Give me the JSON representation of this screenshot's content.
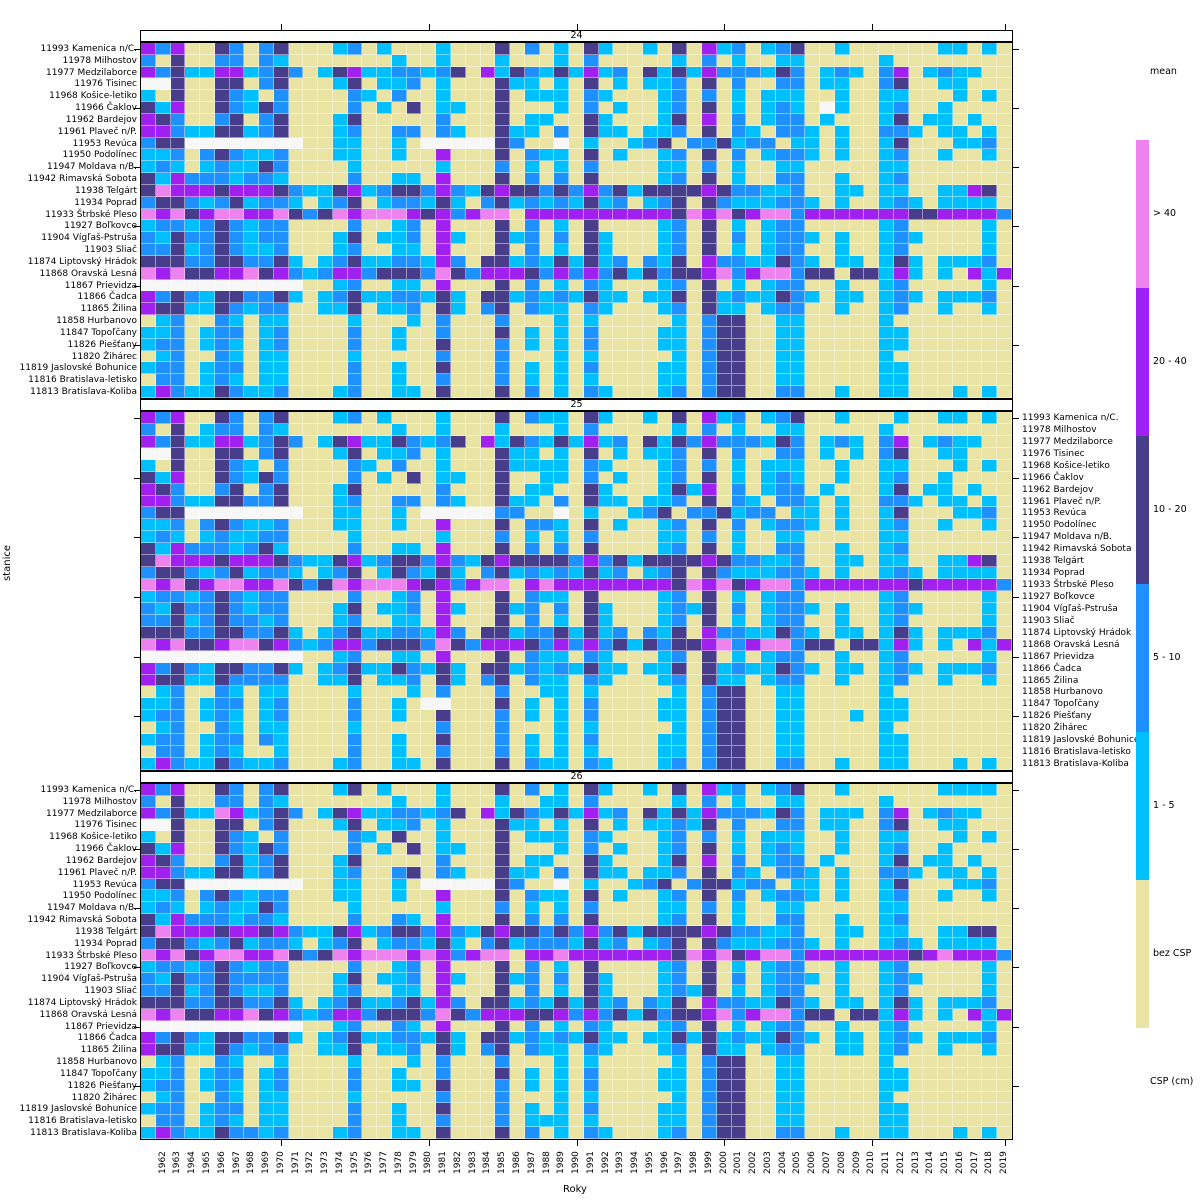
{
  "figure": {
    "background": "#ffffff"
  },
  "axes": {
    "x_label": "Roky",
    "y_label": "stanice"
  },
  "legend": {
    "title_top": "mean",
    "title_bottom": "CSP (cm)",
    "entries": [
      {
        "label": "> 40",
        "color": "#EE82EE"
      },
      {
        "label": "20 - 40",
        "color": "#A020F0"
      },
      {
        "label": "10 - 20",
        "color": "#483D8B"
      },
      {
        "label": "5 - 10",
        "color": "#1E90FF"
      },
      {
        "label": "1 - 5",
        "color": "#00BFFF"
      },
      {
        "label": "bez CSP",
        "color": "#E9E4A4"
      }
    ]
  },
  "stations": [
    "11993 Kamenica n/C.",
    "11978 Milhostov",
    "11977 Medzilaborce",
    "11976 Tisinec",
    "11968 Košice-letiko",
    "11966 Čaklov",
    "11962 Bardejov",
    "11961 Plaveč n/P.",
    "11953 Revúca",
    "11950 Podolínec",
    "11947 Moldava n/B.",
    "11942 Rimavská Sobota",
    "11938 Telgárt",
    "11934 Poprad",
    "11933 Štrbské Pleso",
    "11927 Boľkovce",
    "11904 Vígľaš-Pstruša",
    "11903 Sliač",
    "11874 Liptovský Hrádok",
    "11868 Oravská Lesná",
    "11867 Prievidza",
    "11866 Čadca",
    "11865 Žilina",
    "11858 Hurbanovo",
    "11847 Topoľčany",
    "11826 Piešťany",
    "11820 Žihárec",
    "11819 Jaslovské Bohunice",
    "11816 Bratislava-letisko",
    "11813 Bratislava-Koliba"
  ],
  "chart_data": {
    "type": "heatmap",
    "first_column_year": 1961,
    "n_columns": 59,
    "x_tick_labels": [
      1962,
      1963,
      1964,
      1965,
      1966,
      1967,
      1968,
      1969,
      1970,
      1971,
      1972,
      1973,
      1974,
      1975,
      1976,
      1977,
      1978,
      1979,
      1980,
      1981,
      1982,
      1983,
      1984,
      1985,
      1986,
      1987,
      1988,
      1989,
      1990,
      1991,
      1992,
      1993,
      1994,
      1995,
      1996,
      1997,
      1998,
      1999,
      2000,
      2001,
      2002,
      2003,
      2004,
      2005,
      2006,
      2007,
      2008,
      2009,
      2010,
      2011,
      2012,
      2013,
      2014,
      2015,
      2016,
      2017,
      2018,
      2019
    ],
    "decade_ticks": [
      1970,
      1980,
      1990,
      2000,
      2010,
      2019
    ],
    "value_categories": {
      "0": "bez CSP",
      "1": "1 - 5",
      "2": "5 - 10",
      "3": "10 - 20",
      "4": "20 - 40",
      "5": "> 40",
      "6": "NA"
    },
    "value_colors": {
      "0": "#E9E4A4",
      "1": "#00BFFF",
      "2": "#1E90FF",
      "3": "#483D8B",
      "4": "#A020F0",
      "5": "#EE82EE",
      "6": "#F7F7F7"
    },
    "panels": [
      {
        "label": "24",
        "rows": [
          "42400320230001201000100030201031001030412012300100000011010",
          "20300220210000000100100010001020000010201001100000100000000",
          "42311441232013411221230413213141203131422213201210240121100",
          "66300330230001301120100031101030101120302002201100230011000",
          "10300321020000210200100030111021000120201011100100110001010",
          "31400321320000201030110030001020100120301012106100120010000",
          "43200230230001300000200030110031000130402012201000130110100",
          "44211331230001200220210031102031101120302102210100221011010",
          "23366666666001100106666632006010012302231220110100130001120",
          "11202321120001100100400030211030100120302012210100120010010",
          "12101211320000100000100020101020000110201001100000110000000",
          "31422212210000200110400030202030000120301002200100120000000",
          "35444344432113412332421343323242313333432211200110110011430",
          "23321231221012301221310231212131201230321112210100121011110",
          "54534554453235455543424550444444444435453455244444443344442",
          "12212321220000200120400030201030000120301012200000120000010",
          "21322321220001301120410031202031000120302012210100121000010",
          "22312321120001200110400030201031000120301012200100120000010",
          "33322332231012311221420331213131202130422113210110131011120",
          "54533445342124423332532444324242313233452455233033141010414",
          "66666666666001200110400030201021000120301012200100120000010",
          "42321332231012311221310331212131101130312113210110121011120",
          "43311321220011301120310230211021000120311012200100120010010",
          "01200210110000100010200020001010000010233001100000100000000",
          "11201220120000200100200030101020000110233001100000110000000",
          "12201210120000200100300020101020000110233001100000110000000",
          "01200210110000100000200020001010000010233001100000100000000",
          "12201220110000200100300020101020000110233001100000110000000",
          "02201210110000200100200020101010000110233001100000110000000",
          "14211321120001200110300030201021000120233002200100110001010"
        ]
      },
      {
        "label": "25",
        "rows": [
          "42400320230001201000100030211031001030412012300100010011010",
          "20301220210000000100100010001020000010201001100000100000000",
          "42311441232013411321230413213141203132422213201210240121100",
          "66300330230001301120100031101030101120302002201010230011000",
          "10300321020000210200100031111021000120201011100100110001010",
          "31400321320000201030110030011020100120301012100100120010000",
          "43200230230001300000200030110031000131402012201000130110100",
          "44211332230001200220210031102031101120302102210100221011010",
          "23366666666001100106666622006010012302231220110100130001120",
          "11202321120001100100400030221030100120302012210100120010010",
          "12101211220000100000100020101020000110201001100000110000000",
          "31422212310000200110400030202030000120301002200100120000000",
          "35444344432113412332421343333242313333432211200110110011430",
          "23321231221012301321310231212131201230321112210100121011110",
          "54534554453235455543424550454444444435453455244444443444442",
          "12212321220000200120400030211030000120301012200000120000010",
          "21322321220001301120410031202031000121302012210100121000010",
          "22312322120001200110400030201031000120301012200100120000010",
          "33322332231012311221420331223131202130422113210110131011120",
          "54533455342124423332532444324242313233452455233033141010414",
          "66666666666001200110400030211021000120301012200100120000010",
          "42321332231012311321310331212131101130312113210110121011120",
          "43311322220011301120310230211021000120311012200100120010010",
          "01200210110000100010200020011010000010233001100000100000000",
          "11201220120000200106600030101020000110233001100000110000000",
          "12201210120000200100300020101020000110233001100010110000000",
          "01200210110000100000200020001010000010233001100000100000000",
          "12201220210000200100300020101020000110233001100000110000000",
          "02201210010000200100200020101010000110233001100000110000000",
          "14211321120001200110300030211021000120233002200100110001010"
        ]
      },
      {
        "label": "26",
        "rows": [
          "42400320230001301000100030201031001030412012300100000011110",
          "20300220210000000100100010011020000010201001100000100000000",
          "42311541232013411221230413213141203131422213201110240121100",
          "66300330230001301120100031101030101121302002201100230011000",
          "10300321020000210300100030111021000120201011100100110001010",
          "31400321320000201030110030001020100120301012100100120010000",
          "43200231230001300000200030110031000130402012201000130110100",
          "44211331230001200230210031102031101120302102210100221011010",
          "23366666666001100106666632006010012302331220110100130001120",
          "11202321220001100100400030211030100120302012210100120010010",
          "12101211320000100000100020101020000110201001100000110000000",
          "31422212210000200210400030202030000120301002200100120000000",
          "35444344342113412332421343323242313333432211200110110011330",
          "23321231221012301221310231222131201230321112210100121011110",
          "54534554453235455545424550445444444435453455244444443454442",
          "12212321220000200120400030201030000120301012200100120000010",
          "21322322220001301120410031202031000120302012210100121000010",
          "22312321120001200110400030201031000121301012200100120000010",
          "33322332231012311231420331213131202130422113210110131011120",
          "54533445342124423332532444334242313233452455233033141010414",
          "66666666666001200210400030201021000120301012200100120000010",
          "42321332231012311221310331212131101131312113210110121011120",
          "43311321220011301120310230211021000120311012200110120010010",
          "01200210010000100010200020001010000010233001100000100000000",
          "11201220120000200100200030101020000110233001100000110000000",
          "12201210120000200110300020101020000110233001100000110000000",
          "01200210110000100000200020001010000010233001100000100000000",
          "12201220110000200100300020101020000110233001100000110000000",
          "02201210110000200100200020111010000110233001100000110000000",
          "14211322120001200110300030201021000120233002200100110001010"
        ]
      }
    ]
  }
}
